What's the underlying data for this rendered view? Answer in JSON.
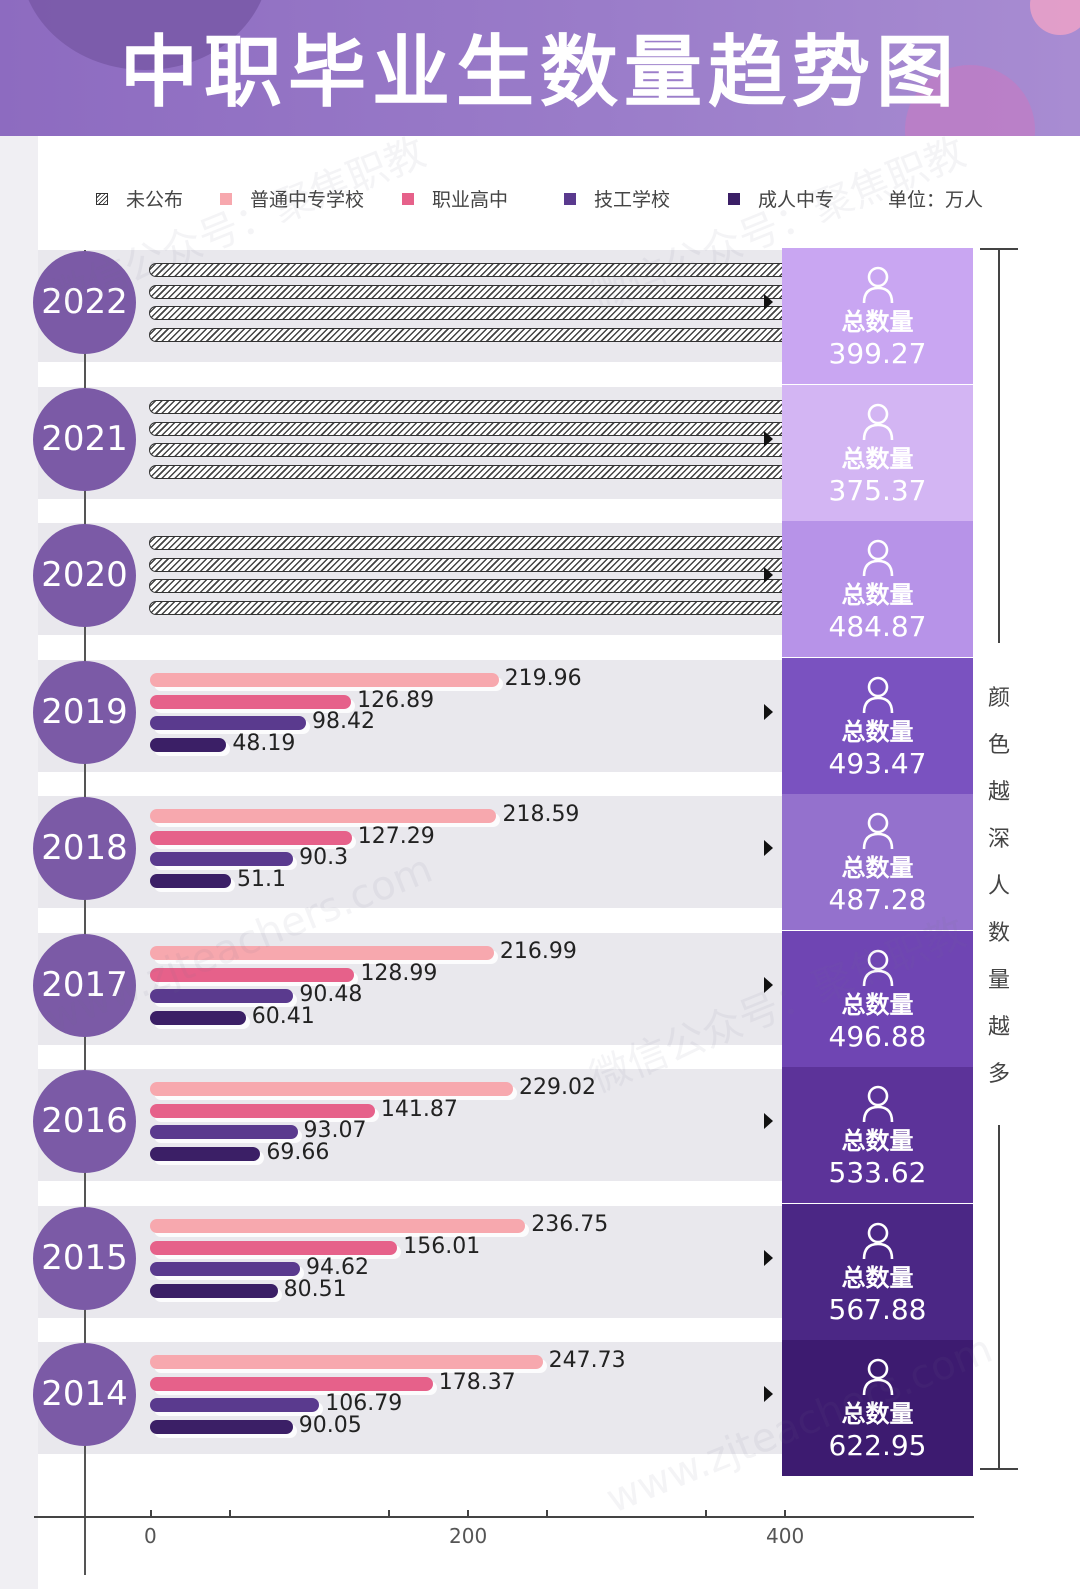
{
  "title": "中职毕业生数量趋势图",
  "unit_label": "单位：万人",
  "side_note": "颜色越深人数量越多",
  "total_label": "总数量",
  "watermarks": [
    "微信公众号：聚焦职教",
    "www.zjteachers.com"
  ],
  "chart_data": {
    "type": "bar",
    "orientation": "horizontal",
    "legend": [
      {
        "name": "未公布",
        "color": "hatch"
      },
      {
        "name": "普通中专学校",
        "color": "#f7a8ae"
      },
      {
        "name": "职业高中",
        "color": "#e6618a"
      },
      {
        "name": "技工学校",
        "color": "#5a3a8e"
      },
      {
        "name": "成人中专",
        "color": "#3b1f66"
      }
    ],
    "xlim": [
      0,
      480
    ],
    "x_ticks": [
      0,
      200,
      400
    ],
    "rows": [
      {
        "year": "2022",
        "unpublished": true,
        "values": [],
        "total": "399.27",
        "total_color": "#c9a6f2"
      },
      {
        "year": "2021",
        "unpublished": true,
        "values": [],
        "total": "375.37",
        "total_color": "#d3b5f3"
      },
      {
        "year": "2020",
        "unpublished": true,
        "values": [],
        "total": "484.87",
        "total_color": "#b793e8"
      },
      {
        "year": "2019",
        "unpublished": false,
        "values": [
          219.96,
          126.89,
          98.42,
          48.19
        ],
        "labels": [
          "219.96",
          "126.89",
          "98.42",
          "48.19"
        ],
        "total": "493.47",
        "total_color": "#7a52c0"
      },
      {
        "year": "2018",
        "unpublished": false,
        "values": [
          218.59,
          127.29,
          90.3,
          51.1
        ],
        "labels": [
          "218.59",
          "127.29",
          "90.3",
          "51.1"
        ],
        "total": "487.28",
        "total_color": "#9471cd"
      },
      {
        "year": "2017",
        "unpublished": false,
        "values": [
          216.99,
          128.99,
          90.48,
          60.41
        ],
        "labels": [
          "216.99",
          "128.99",
          "90.48",
          "60.41"
        ],
        "total": "496.88",
        "total_color": "#6f45b3"
      },
      {
        "year": "2016",
        "unpublished": false,
        "values": [
          229.02,
          141.87,
          93.07,
          69.66
        ],
        "labels": [
          "229.02",
          "141.87",
          "93.07",
          "69.66"
        ],
        "total": "533.62",
        "total_color": "#5c3399"
      },
      {
        "year": "2015",
        "unpublished": false,
        "values": [
          236.75,
          156.01,
          94.62,
          80.51
        ],
        "labels": [
          "236.75",
          "156.01",
          "94.62",
          "80.51"
        ],
        "total": "567.88",
        "total_color": "#4b2785"
      },
      {
        "year": "2014",
        "unpublished": false,
        "values": [
          247.73,
          178.37,
          106.79,
          90.05
        ],
        "labels": [
          "247.73",
          "178.37",
          "106.79",
          "90.05"
        ],
        "total": "622.95",
        "total_color": "#3d1b70"
      }
    ]
  }
}
